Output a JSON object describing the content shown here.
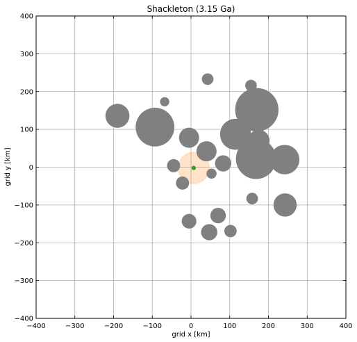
{
  "chart_data": {
    "type": "scatter",
    "title": "Shackleton (3.15 Ga)",
    "xlabel": "grid x [km]",
    "ylabel": "grid y [km]",
    "xlim": [
      -400,
      400
    ],
    "ylim": [
      -400,
      400
    ],
    "xticks": [
      -400,
      -300,
      -200,
      -100,
      0,
      100,
      200,
      300,
      400
    ],
    "yticks": [
      -400,
      -300,
      -200,
      -100,
      0,
      100,
      200,
      300,
      400
    ],
    "grid": true,
    "craters": [
      {
        "x": 43,
        "y": 233,
        "r": 15
      },
      {
        "x": 155,
        "y": 216,
        "r": 15
      },
      {
        "x": -68,
        "y": 173,
        "r": 12
      },
      {
        "x": -190,
        "y": 136,
        "r": 31
      },
      {
        "x": 170,
        "y": 152,
        "r": 56
      },
      {
        "x": -93,
        "y": 106,
        "r": 50
      },
      {
        "x": 115,
        "y": 87,
        "r": 40
      },
      {
        "x": -5,
        "y": 78,
        "r": 26
      },
      {
        "x": 175,
        "y": 70,
        "r": 28
      },
      {
        "x": 40,
        "y": 42,
        "r": 26
      },
      {
        "x": 168,
        "y": 22,
        "r": 52
      },
      {
        "x": 242,
        "y": 20,
        "r": 38
      },
      {
        "x": 83,
        "y": 10,
        "r": 21
      },
      {
        "x": -45,
        "y": 4,
        "r": 17
      },
      {
        "x": 53,
        "y": -17,
        "r": 13
      },
      {
        "x": -22,
        "y": -42,
        "r": 17
      },
      {
        "x": 158,
        "y": -83,
        "r": 15
      },
      {
        "x": 243,
        "y": -100,
        "r": 30
      },
      {
        "x": 70,
        "y": -128,
        "r": 20
      },
      {
        "x": -5,
        "y": -143,
        "r": 19
      },
      {
        "x": 47,
        "y": -172,
        "r": 21
      },
      {
        "x": 102,
        "y": -169,
        "r": 16
      }
    ],
    "target": {
      "x": 7,
      "y": -2,
      "r": 40,
      "color": "#ff7f0e"
    },
    "marker": {
      "x": 7,
      "y": -2,
      "r": 9,
      "color": "#2ca02c"
    },
    "crater_color": "#808080"
  }
}
